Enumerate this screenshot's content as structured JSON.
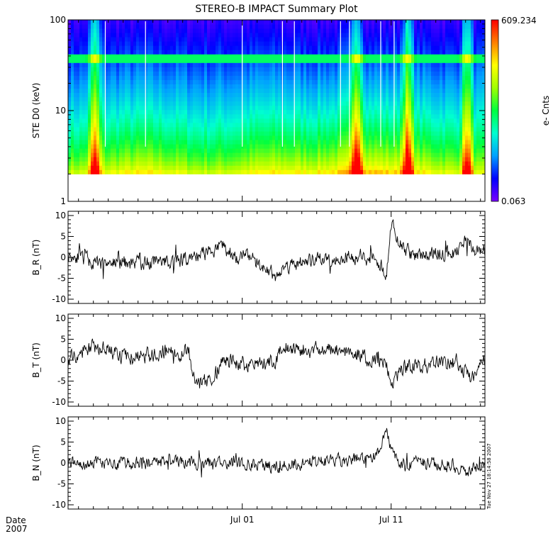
{
  "chart_data": [
    {
      "type": "heatmap",
      "title": "STEREO-B IMPACT Summary Plot",
      "ylabel": "STE D0 (keV)",
      "yscale": "log",
      "ylim": [
        1,
        100
      ],
      "yticks": [
        "1",
        "10",
        "100"
      ],
      "x_ticks": [
        "Jul 01",
        "Jul 11"
      ],
      "x_range_days": [
        -11.7,
        16.3
      ],
      "colorbar": {
        "label": "e- Cnts",
        "max": "609.234",
        "min": "0.063",
        "colors": [
          "#7a00ff",
          "#0000ff",
          "#00a0ff",
          "#00ffd0",
          "#00ff40",
          "#a0ff00",
          "#ffff00",
          "#ff8000",
          "#ff0000"
        ]
      },
      "features": {
        "lower_energy_cutoff_keV": 2,
        "band_keV": [
          35,
          42
        ],
        "enhancements_day_offsets": [
          -9.9,
          7.7,
          11.1,
          15.1
        ],
        "data_gaps_day_offsets": [
          -9.2,
          -6.5,
          0.0,
          2.7,
          3.5,
          6.6,
          7.2,
          9.3,
          10.2,
          16.5
        ]
      }
    },
    {
      "type": "line",
      "ylabel": "B_R (nT)",
      "ylim": [
        -10,
        10
      ],
      "yticks": [
        "-10",
        "-5",
        "0",
        "5",
        "10"
      ],
      "x_ticks": [
        "Jul 01",
        "Jul 11"
      ],
      "anchors_day_value": [
        [
          -11.7,
          0.4
        ],
        [
          -11.0,
          0.5
        ],
        [
          -10.4,
          -0.6
        ],
        [
          -9.6,
          -2.0
        ],
        [
          -9.0,
          -1.0
        ],
        [
          -8.0,
          -1.5
        ],
        [
          -6.0,
          -1.2
        ],
        [
          -4.0,
          -0.6
        ],
        [
          -2.0,
          1.6
        ],
        [
          -1.3,
          2.9
        ],
        [
          -0.6,
          0.2
        ],
        [
          0.5,
          0.3
        ],
        [
          1.2,
          -1.8
        ],
        [
          2.2,
          -4.5
        ],
        [
          3.2,
          -1.6
        ],
        [
          5.0,
          -0.8
        ],
        [
          7.0,
          0.3
        ],
        [
          9.0,
          -0.2
        ],
        [
          9.7,
          -3.8
        ],
        [
          10.0,
          8.0
        ],
        [
          10.6,
          3.0
        ],
        [
          11.5,
          0.2
        ],
        [
          13.0,
          1.2
        ],
        [
          14.2,
          0.6
        ],
        [
          15.0,
          4.2
        ],
        [
          15.7,
          2.0
        ],
        [
          16.3,
          2.0
        ]
      ]
    },
    {
      "type": "line",
      "ylabel": "B_T (nT)",
      "ylim": [
        -10,
        10
      ],
      "yticks": [
        "-10",
        "-5",
        "0",
        "5",
        "10"
      ],
      "x_ticks": [
        "Jul 01",
        "Jul 11"
      ],
      "anchors_day_value": [
        [
          -11.7,
          0.6
        ],
        [
          -10.9,
          2.0
        ],
        [
          -10.0,
          3.5
        ],
        [
          -9.0,
          1.8
        ],
        [
          -7.2,
          0.4
        ],
        [
          -5.5,
          1.8
        ],
        [
          -3.6,
          2.0
        ],
        [
          -3.2,
          -5.5
        ],
        [
          -2.0,
          -5.2
        ],
        [
          -1.4,
          0.3
        ],
        [
          0.2,
          -1.2
        ],
        [
          2.2,
          -0.5
        ],
        [
          2.6,
          3.6
        ],
        [
          4.2,
          2.2
        ],
        [
          6.5,
          2.7
        ],
        [
          8.2,
          1.0
        ],
        [
          9.6,
          -1.0
        ],
        [
          10.2,
          -5.6
        ],
        [
          10.6,
          -2.5
        ],
        [
          11.5,
          -1.0
        ],
        [
          13.0,
          -1.0
        ],
        [
          14.5,
          -0.5
        ],
        [
          15.3,
          -5.0
        ],
        [
          16.3,
          0.0
        ]
      ]
    },
    {
      "type": "line",
      "ylabel": "B_N (nT)",
      "ylim": [
        -10,
        10
      ],
      "yticks": [
        "-10",
        "-5",
        "0",
        "5",
        "10"
      ],
      "x_ticks": [
        "Jul 01",
        "Jul 11"
      ],
      "anchors_day_value": [
        [
          -11.7,
          0.0
        ],
        [
          -9.0,
          -0.2
        ],
        [
          -6.0,
          0.3
        ],
        [
          -3.0,
          0.0
        ],
        [
          0.0,
          -0.3
        ],
        [
          2.0,
          -1.0
        ],
        [
          4.0,
          0.0
        ],
        [
          7.0,
          0.6
        ],
        [
          9.0,
          2.0
        ],
        [
          9.7,
          6.5
        ],
        [
          10.1,
          2.0
        ],
        [
          10.6,
          -0.5
        ],
        [
          12.0,
          0.0
        ],
        [
          14.0,
          -0.3
        ],
        [
          15.0,
          -2.0
        ],
        [
          16.3,
          0.3
        ]
      ]
    }
  ],
  "footer": {
    "date_label": "Date",
    "year": "2007",
    "timestamp": "Tue Nov 27 18:14:58 2007"
  }
}
